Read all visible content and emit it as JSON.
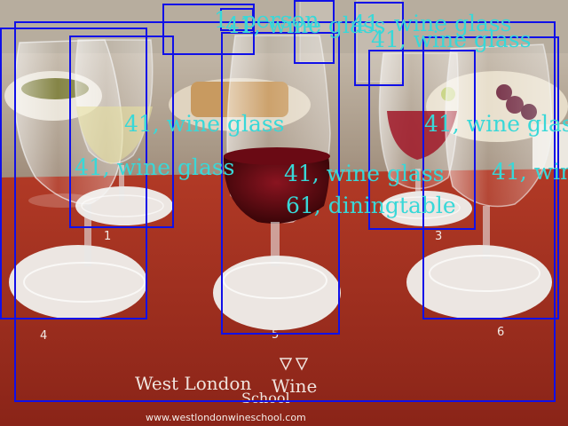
{
  "photo": {
    "mat_brand": "West London Wine School",
    "mat_brand_line1": "West London",
    "mat_brand_line2": "Wine",
    "mat_brand_line3": "School",
    "mat_url": "www.westlondonwineschool.com",
    "glass_numbers": [
      "1",
      "4",
      "5",
      "6",
      "3"
    ]
  },
  "detections": [
    {
      "label": "1, person"
    },
    {
      "label": "41, wine glass"
    },
    {
      "label": "41, wine glass"
    },
    {
      "label": "41, wine glass"
    },
    {
      "label": "41, wine glass"
    },
    {
      "label": "41, wine glass"
    },
    {
      "label": "41, wine glass"
    },
    {
      "label": "41, wine glass"
    },
    {
      "label": "41, wine glass"
    },
    {
      "label": "61, diningtable"
    }
  ],
  "colors": {
    "box": "#1010e8",
    "label": "#38d8d8",
    "mat": "#9a2a1c"
  }
}
